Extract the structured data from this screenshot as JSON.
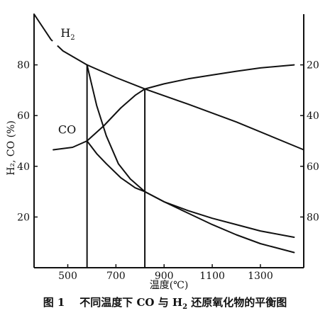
{
  "chart_data": {
    "type": "line",
    "caption": {
      "figure_number": "图 1",
      "text_before": "不同温度下 CO 与 H",
      "subscript": "2",
      "text_after": " 还原氧化物的平衡图"
    },
    "xlabel": "温度(℃)",
    "ylabel": "H₂, CO (%)",
    "xlim": [
      360,
      1480
    ],
    "ylim": [
      0,
      100
    ],
    "x_ticks": [
      "500",
      "700",
      "900",
      "1100",
      "1300"
    ],
    "x_tick_values": [
      500,
      700,
      900,
      1100,
      1300
    ],
    "y_left_ticks": [
      "20",
      "40",
      "60",
      "80"
    ],
    "y_left_tick_values": [
      20,
      40,
      60,
      80
    ],
    "y_right_ticks": [
      "20",
      "40",
      "60",
      "80"
    ],
    "y_right_tick_values": [
      80,
      60,
      40,
      20
    ],
    "series": [
      {
        "name": "H₂",
        "points": [
          [
            360,
            100
          ],
          [
            430,
            90
          ],
          [
            480,
            85.5
          ],
          [
            580,
            80
          ],
          [
            700,
            75
          ],
          [
            820,
            70.5
          ],
          [
            1000,
            64.5
          ],
          [
            1200,
            57.5
          ],
          [
            1480,
            46.5
          ]
        ],
        "gap": [
          [
            438,
            89.5
          ],
          [
            456,
            87.5
          ]
        ]
      },
      {
        "name": "CO",
        "points": [
          [
            440,
            46.5
          ],
          [
            520,
            47.5
          ],
          [
            580,
            50
          ],
          [
            650,
            56
          ],
          [
            720,
            63
          ],
          [
            780,
            68
          ],
          [
            820,
            70.5
          ],
          [
            900,
            72.5
          ],
          [
            1000,
            74.5
          ],
          [
            1100,
            76
          ],
          [
            1200,
            77.5
          ],
          [
            1300,
            78.8
          ],
          [
            1440,
            80
          ]
        ]
      },
      {
        "name": "upper-branch",
        "points": [
          [
            580,
            80
          ],
          [
            620,
            64
          ],
          [
            660,
            52
          ],
          [
            710,
            41
          ],
          [
            760,
            35
          ],
          [
            820,
            30
          ],
          [
            900,
            26
          ],
          [
            1000,
            22.5
          ],
          [
            1100,
            19.5
          ],
          [
            1200,
            17
          ],
          [
            1300,
            14.5
          ],
          [
            1440,
            12
          ]
        ]
      },
      {
        "name": "lower-branch",
        "points": [
          [
            580,
            50
          ],
          [
            620,
            45
          ],
          [
            660,
            41
          ],
          [
            720,
            35.5
          ],
          [
            780,
            31.5
          ],
          [
            820,
            30
          ],
          [
            900,
            26
          ],
          [
            1000,
            21.5
          ],
          [
            1100,
            17
          ],
          [
            1200,
            13
          ],
          [
            1300,
            9.5
          ],
          [
            1440,
            6
          ]
        ]
      }
    ],
    "verticals": [
      {
        "x": 580,
        "y_top": 80,
        "y_bottom": 0
      },
      {
        "x": 820,
        "y_top": 70.5,
        "y_bottom": 0
      }
    ],
    "labels": [
      {
        "text": "H",
        "sub": "2",
        "x": 470,
        "y": 91
      },
      {
        "text": "CO",
        "x": 460,
        "y": 53
      }
    ],
    "grid": false,
    "legend": "none"
  }
}
